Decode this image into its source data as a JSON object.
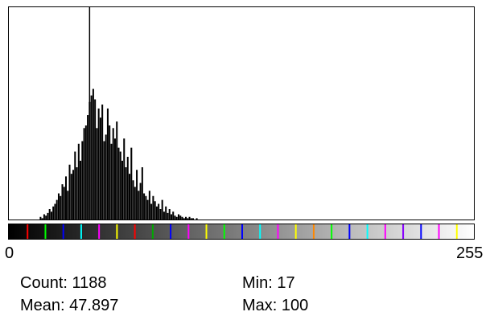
{
  "chart_data": {
    "type": "bar",
    "xlim": [
      0,
      255
    ],
    "x_tick_labels": [
      "0",
      "255"
    ],
    "mode_value": 44,
    "values": [
      0,
      0,
      0,
      0,
      0,
      0,
      0,
      0,
      0,
      0,
      0,
      0,
      0,
      0,
      0,
      0,
      0,
      2,
      1,
      4,
      3,
      5,
      8,
      6,
      10,
      12,
      15,
      20,
      18,
      27,
      25,
      33,
      22,
      42,
      35,
      38,
      52,
      40,
      58,
      45,
      60,
      70,
      72,
      80,
      90,
      95,
      100,
      92,
      70,
      85,
      78,
      88,
      60,
      65,
      85,
      72,
      58,
      70,
      62,
      75,
      55,
      52,
      45,
      62,
      40,
      48,
      35,
      55,
      30,
      25,
      38,
      22,
      28,
      40,
      20,
      18,
      15,
      22,
      12,
      18,
      14,
      10,
      12,
      8,
      15,
      6,
      10,
      5,
      8,
      4,
      6,
      3,
      2,
      4,
      3,
      2,
      1,
      2,
      1,
      2,
      1,
      1,
      0,
      1,
      0,
      0,
      0,
      0,
      0,
      0,
      0,
      0,
      0,
      0,
      0,
      0,
      0,
      0,
      0,
      0,
      0,
      0,
      0,
      0,
      0,
      0,
      0,
      0,
      0,
      0,
      0,
      0,
      0,
      0,
      0,
      0,
      0,
      0,
      0,
      0,
      0,
      0,
      0,
      0,
      0,
      0,
      0,
      0,
      0,
      0,
      0,
      0,
      0,
      0,
      0,
      0,
      0,
      0,
      0,
      0,
      0,
      0,
      0,
      0,
      0,
      0,
      0,
      0,
      0,
      0,
      0,
      0,
      0,
      0,
      0,
      0,
      0,
      0,
      0,
      0,
      0,
      0,
      0,
      0,
      0,
      0,
      0,
      0,
      0,
      0,
      0,
      0,
      0,
      0,
      0,
      0,
      0,
      0,
      0,
      0,
      0,
      0,
      0,
      0,
      0,
      0,
      0,
      0,
      0,
      0,
      0,
      0,
      0,
      0,
      0,
      0,
      0,
      0,
      0,
      0,
      0,
      0,
      0,
      0,
      0,
      0,
      0,
      0,
      0,
      0,
      0,
      0,
      0,
      0,
      0,
      0,
      0,
      0,
      0,
      0,
      0,
      0,
      0,
      0,
      0,
      0,
      0,
      0,
      0,
      0,
      0,
      0,
      0,
      0,
      0,
      0,
      0,
      0,
      0,
      0,
      0,
      0,
      0,
      0,
      0,
      0,
      0
    ]
  },
  "lut": {
    "accent_colors": [
      "#ff0000",
      "#00ff00",
      "#0000ff",
      "#00ffff",
      "#ff00ff",
      "#ffff00",
      "#ff0000",
      "#00aa00",
      "#0000ff",
      "#ff00ff",
      "#ffff00",
      "#00ff00",
      "#0000ff",
      "#00ffff",
      "#ff00ff",
      "#ffff00",
      "#ff8800",
      "#00ff00",
      "#0000ff",
      "#00ffff",
      "#ff00ff",
      "#8800ff",
      "#0000ff",
      "#ff00ff",
      "#ffff00"
    ]
  },
  "axis": {
    "min_label": "0",
    "max_label": "255"
  },
  "stats": {
    "count": "Count: 1188",
    "mean": "Mean: 47.897",
    "min": "Min: 17",
    "max": "Max: 100"
  }
}
